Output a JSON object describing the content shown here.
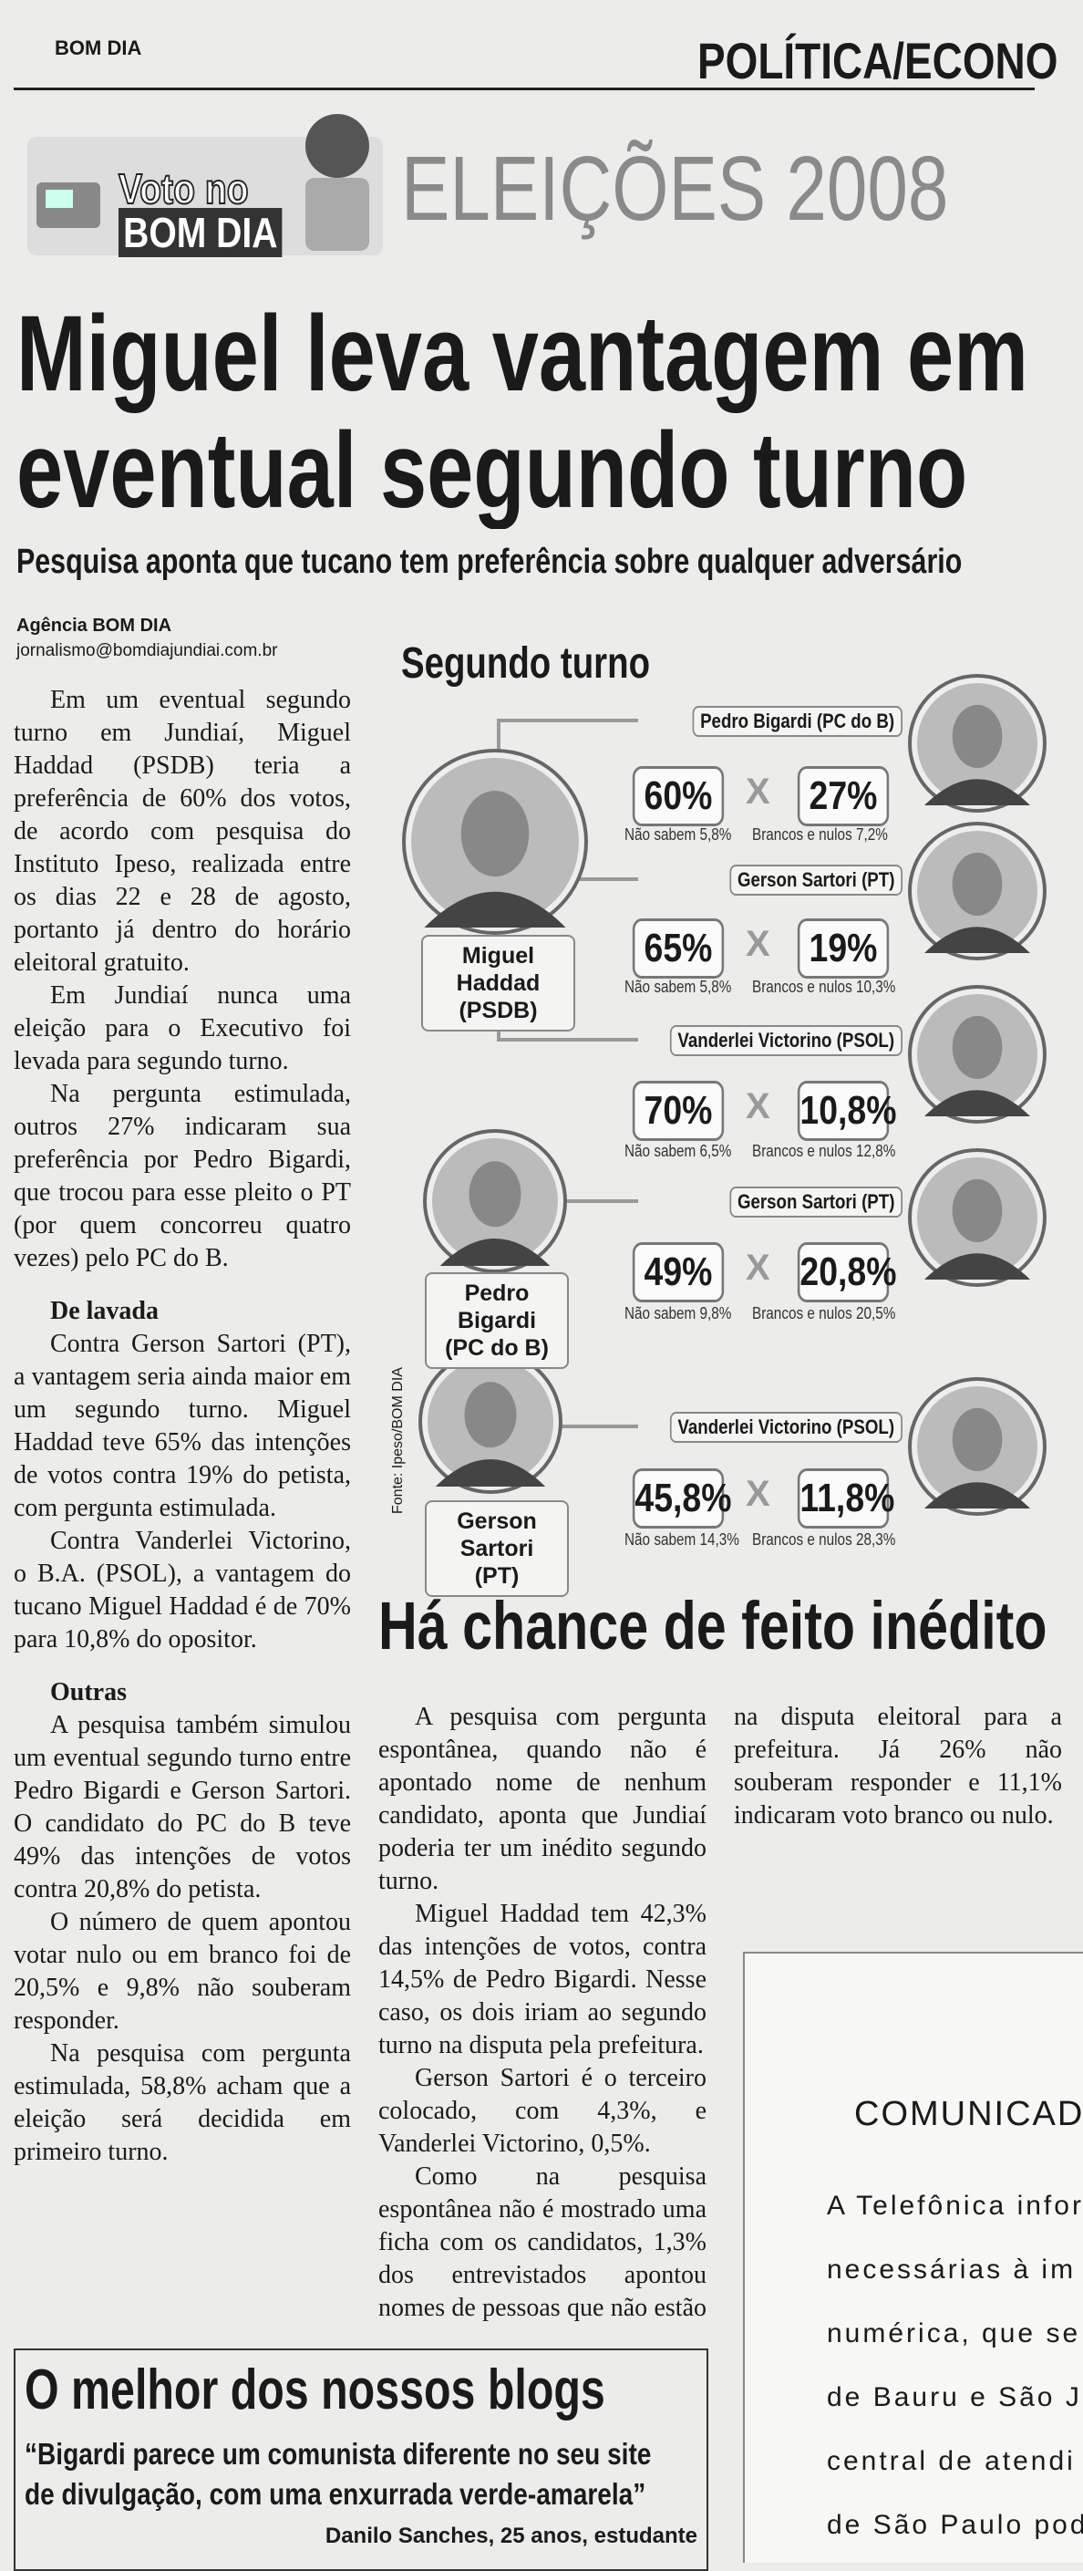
{
  "header": {
    "paper": "BOM DIA",
    "section": "POLÍTICA/ECONO"
  },
  "logo": {
    "line1": "Voto no",
    "line2": "BOM DIA",
    "banner": "ELEIÇÕES 2008"
  },
  "headline": {
    "line1": "Miguel leva vantagem em",
    "line2": "eventual segundo turno",
    "subtitle": "Pesquisa aponta que tucano tem preferência sobre qualquer adversário"
  },
  "byline": {
    "agency": "Agência BOM DIA",
    "email": "jornalismo@bomdiajundiai.com.br"
  },
  "article": {
    "blocks": [
      {
        "type": "p",
        "text": "Em um eventual segundo turno em Jundiaí, Miguel Haddad (PSDB) teria a preferência de 60% dos votos, de acordo com pesquisa do Instituto Ipeso, realizada entre os dias 22 e 28 de agosto, portanto já dentro do horário eleitoral gratuito."
      },
      {
        "type": "p",
        "text": "Em Jundiaí nunca uma eleição para o Executivo foi levada para segundo turno."
      },
      {
        "type": "p",
        "text": "Na pergunta estimulada, outros 27% indicaram sua preferência por Pedro Bigardi, que trocou para esse pleito o PT (por quem concorreu quatro vezes) pelo PC do B."
      },
      {
        "type": "h",
        "text": "De lavada"
      },
      {
        "type": "p",
        "text": "Contra Gerson Sartori (PT), a vantagem seria ainda maior em um segundo turno. Miguel Haddad teve 65% das intenções de votos contra 19% do petista, com pergunta estimulada."
      },
      {
        "type": "p",
        "text": "Contra Vanderlei Victorino, o B.A. (PSOL), a vantagem do tucano Miguel Haddad é de 70% para 10,8% do opositor."
      },
      {
        "type": "h",
        "text": "Outras"
      },
      {
        "type": "p",
        "text": "A pesquisa também simulou um eventual segundo turno entre Pedro Bigardi e Gerson Sartori. O candidato do PC do B teve 49% das intenções de votos contra 20,8% do petista."
      },
      {
        "type": "p",
        "text": "O número de quem apontou votar nulo ou em branco foi de 20,5% e 9,8% não souberam responder."
      },
      {
        "type": "p",
        "text": "Na pesquisa com pergunta estimulada, 58,8% acham que a eleição será decidida em primeiro turno."
      }
    ]
  },
  "infographic": {
    "title": "Segundo turno",
    "source": "Fonte: Ipeso/BOM DIA",
    "candidates": [
      {
        "name": "Miguel Haddad",
        "party": "(PSDB)"
      },
      {
        "name": "Pedro Bigardi",
        "party": "(PC do B)"
      },
      {
        "name": "Gerson Sartori",
        "party": "(PT)"
      }
    ],
    "vs": "X",
    "matchups": [
      {
        "opponent": "Pedro Bigardi (PC do B)",
        "left": "60%",
        "right": "27%",
        "dont_know": "Não sabem 5,8%",
        "blank_null": "Brancos e nulos 7,2%"
      },
      {
        "opponent": "Gerson Sartori (PT)",
        "left": "65%",
        "right": "19%",
        "dont_know": "Não sabem 5,8%",
        "blank_null": "Brancos e nulos 10,3%"
      },
      {
        "opponent": "Vanderlei Victorino (PSOL)",
        "left": "70%",
        "right": "10,8%",
        "dont_know": "Não sabem 6,5%",
        "blank_null": "Brancos e nulos 12,8%"
      },
      {
        "opponent": "Gerson Sartori (PT)",
        "left": "49%",
        "right": "20,8%",
        "dont_know": "Não sabem 9,8%",
        "blank_null": "Brancos e nulos 20,5%"
      },
      {
        "opponent": "Vanderlei Victorino (PSOL)",
        "left": "45,8%",
        "right": "11,8%",
        "dont_know": "Não sabem 14,3%",
        "blank_null": "Brancos e nulos 28,3%"
      }
    ]
  },
  "article2": {
    "headline": "Há chance de feito inédito",
    "paragraphs": [
      "A pesquisa com pergunta espontânea, quando não é apontado nome de nenhum candidato, aponta que Jundiaí poderia ter um inédito segundo turno.",
      "Miguel Haddad tem 42,3% das intenções de votos, contra 14,5% de Pedro Bigardi. Nesse caso, os dois iriam ao segundo turno na disputa pela prefeitura.",
      "Gerson Sartori é o terceiro colocado, com 4,3%, e Vanderlei Victorino, 0,5%.",
      "Como na pesquisa espontânea não é mostrado uma ficha com os candidatos, 1,3% dos entrevistados apontou nomes de pessoas que não estão na disputa eleitoral para a prefeitura. Já 26% não souberam responder e 11,1% indicaram voto branco ou nulo."
    ]
  },
  "ad": {
    "title": "COMUNICAD",
    "lines": [
      "A Telefônica infor",
      "necessárias à im",
      "numérica, que se",
      "de Bauru e São Jo",
      "central de atendi",
      "de São Paulo pod"
    ]
  },
  "blogs": {
    "title": "O melhor dos nossos blogs",
    "quote": "“Bigardi parece um comunista diferente no seu site de divulgação, com uma enxurrada verde-amarela”",
    "author": "Danilo Sanches, 25 anos, estudante"
  }
}
